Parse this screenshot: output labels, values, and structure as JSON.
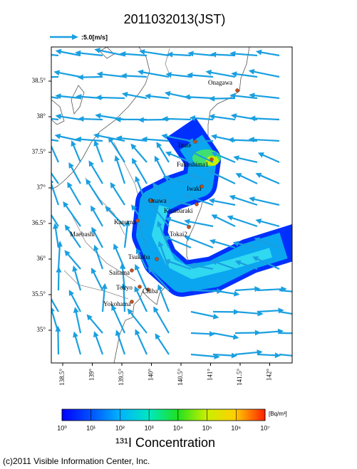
{
  "title": "2011032013(JST)",
  "wind_legend": ":5.0[m/s]",
  "map": {
    "lat_ticks": [
      {
        "value": 38.5,
        "label": "38.5°"
      },
      {
        "value": 38,
        "label": "38°"
      },
      {
        "value": 37.5,
        "label": "37.5°"
      },
      {
        "value": 37,
        "label": "37°"
      },
      {
        "value": 36.5,
        "label": "36.5°"
      },
      {
        "value": 36,
        "label": "36°"
      },
      {
        "value": 35.5,
        "label": "35.5°"
      },
      {
        "value": 35,
        "label": "35°"
      }
    ],
    "lon_ticks": [
      {
        "value": 138.5,
        "label": "138.5°"
      },
      {
        "value": 139,
        "label": "139°"
      },
      {
        "value": 139.5,
        "label": "139.5°"
      },
      {
        "value": 140,
        "label": "140°"
      },
      {
        "value": 140.5,
        "label": "140.5°"
      },
      {
        "value": 141,
        "label": "141°"
      },
      {
        "value": 141.5,
        "label": "141.5°"
      },
      {
        "value": 142,
        "label": "142°"
      }
    ],
    "cities": [
      "Onagawa",
      "Iitate",
      "Fukushima1",
      "Iwaki",
      "Onawa",
      "Kitaibaraki",
      "Kanuma",
      "Tokai2",
      "Maebashi",
      "Tsukuba",
      "Saitama",
      "Tokyo",
      "Chiba",
      "Yokohama"
    ]
  },
  "colorbar": {
    "label": "¹³¹I Concentration",
    "unit": "[Bq/m³]",
    "log": true,
    "range": [
      1,
      10000000
    ],
    "ticks": [
      {
        "value": 1,
        "label": "10⁰"
      },
      {
        "value": 10,
        "label": "10¹"
      },
      {
        "value": 100,
        "label": "10²"
      },
      {
        "value": 1000,
        "label": "10³"
      },
      {
        "value": 10000,
        "label": "10⁴"
      },
      {
        "value": 100000,
        "label": "10⁵"
      },
      {
        "value": 1000000,
        "label": "10⁶"
      },
      {
        "value": 10000000,
        "label": "10⁷"
      }
    ]
  },
  "footer": "(c)2011 Visible Information Center, Inc."
}
